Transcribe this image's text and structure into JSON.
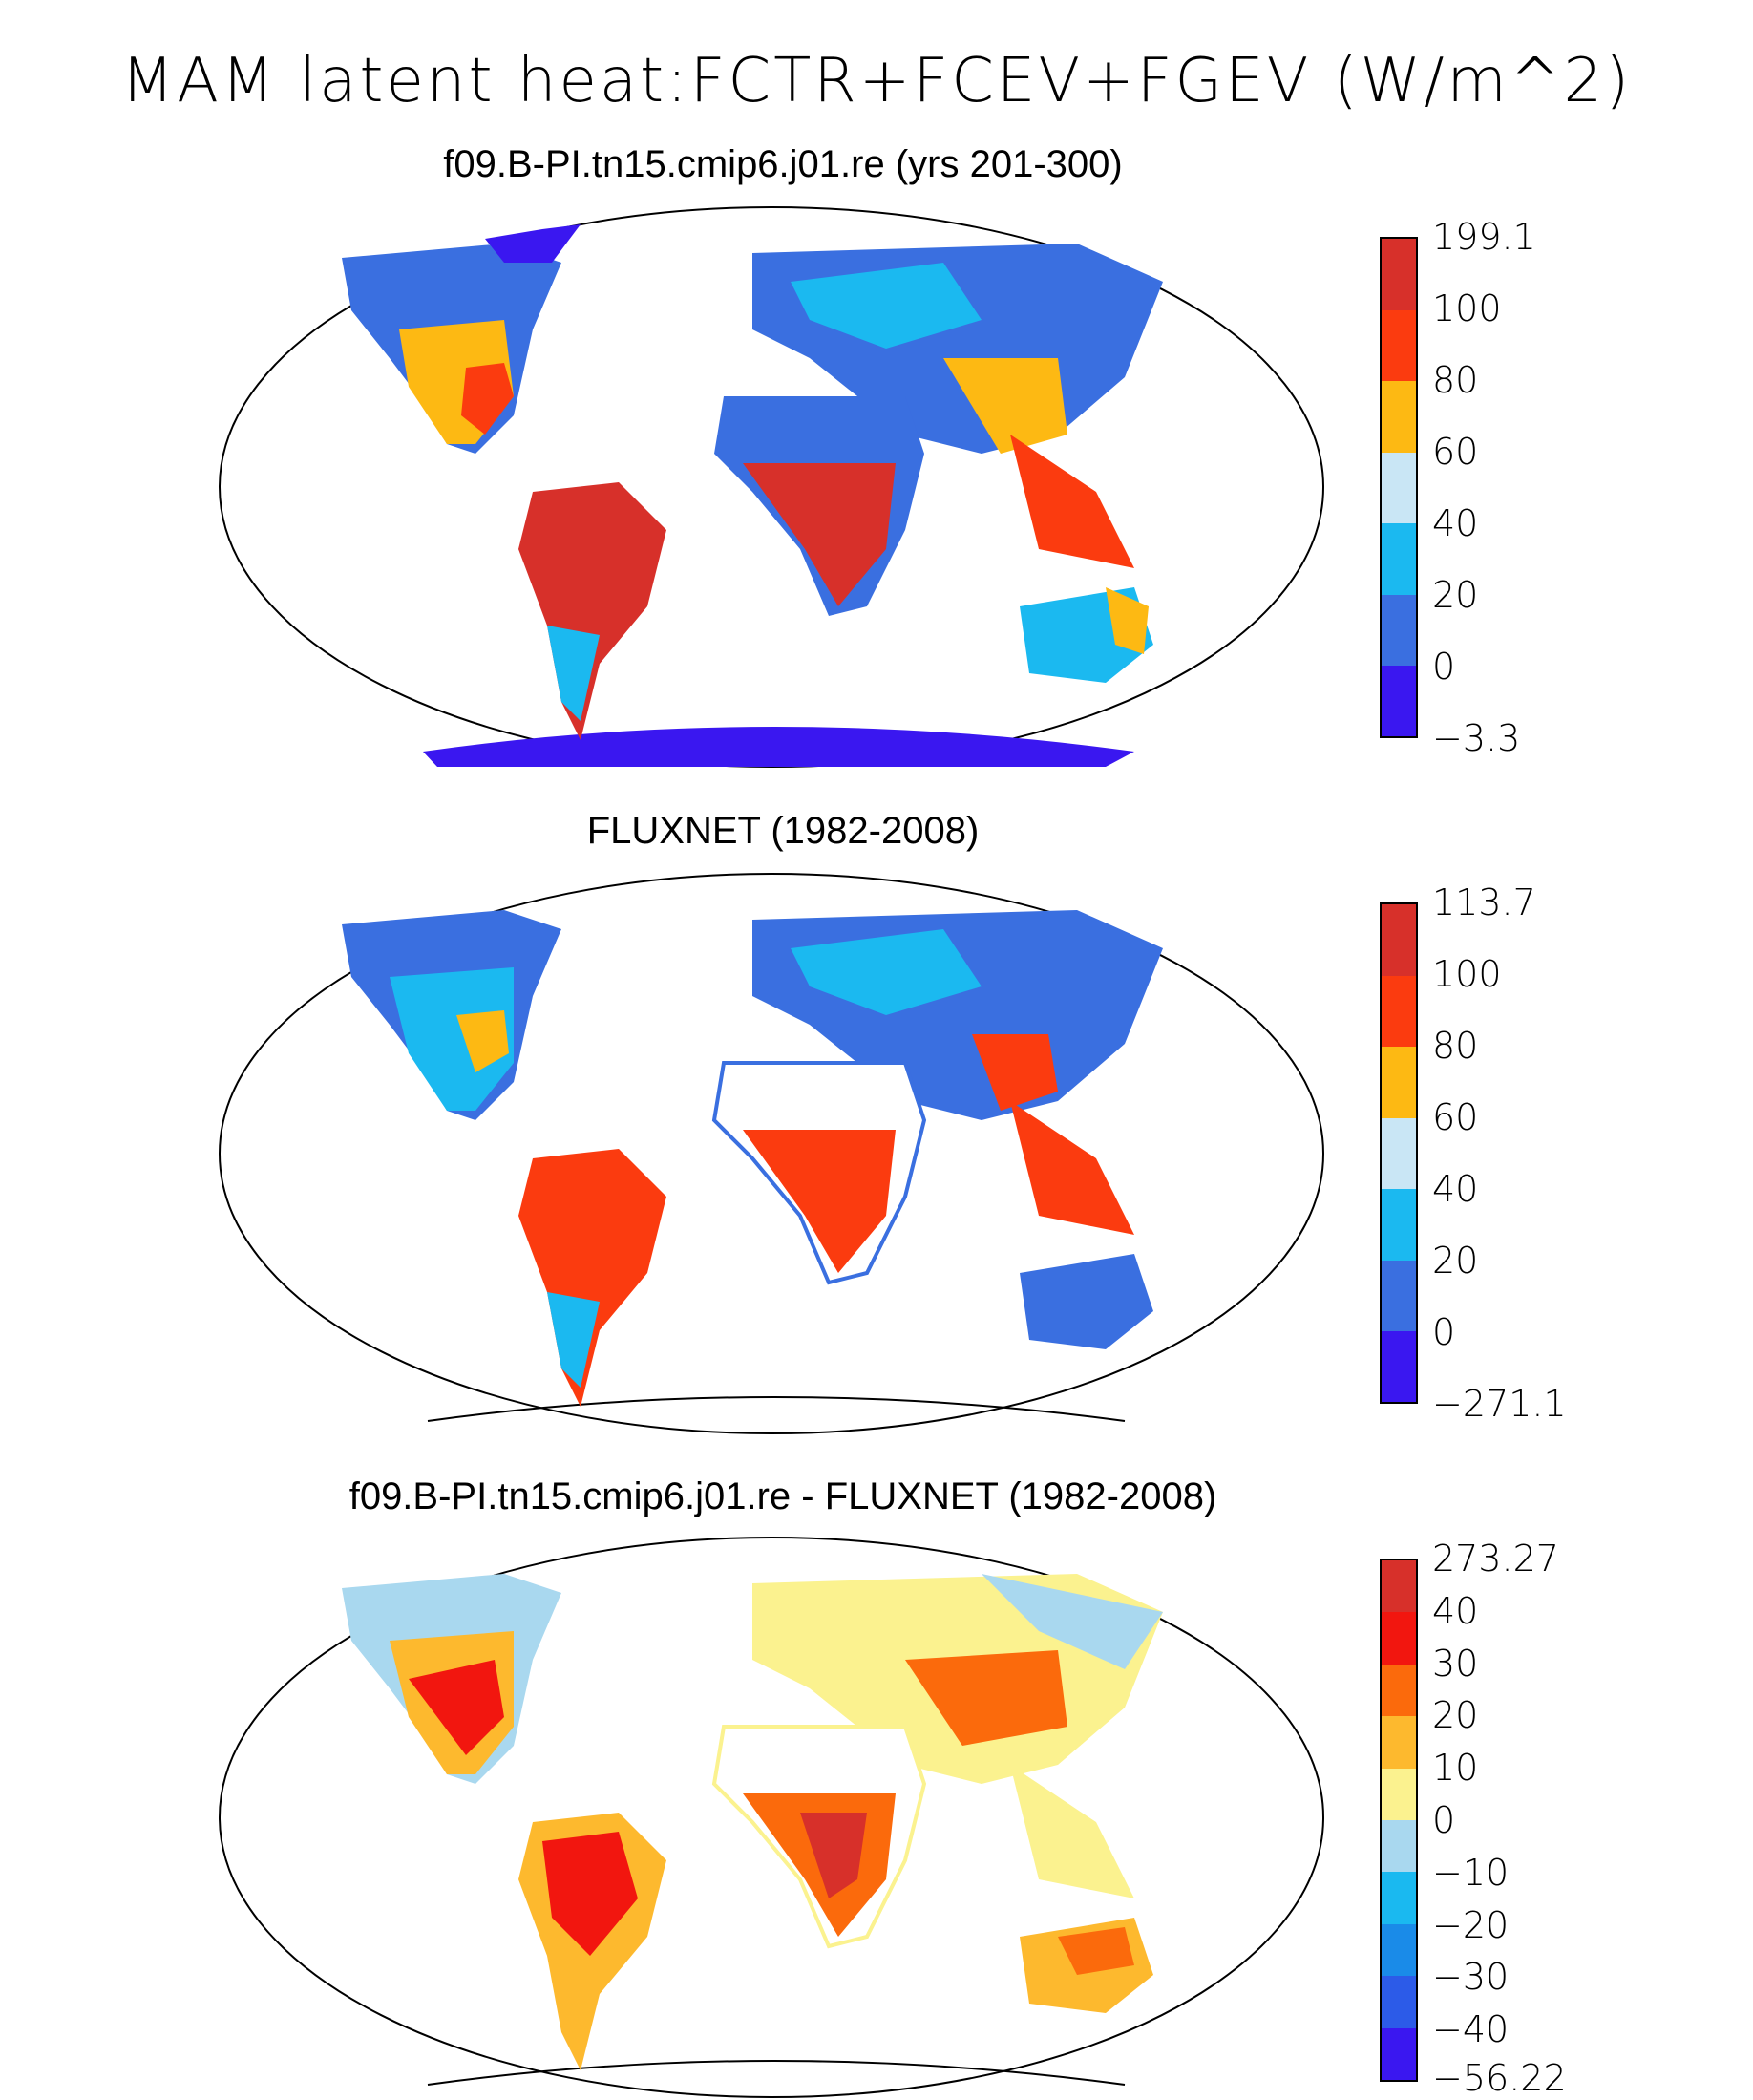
{
  "title": "MAM latent heat:FCTR+FCEV+FGEV (W/m^2)",
  "panels": [
    {
      "title": "f09.B-PI.tn15.cmip6.j01.re (yrs 201-300)",
      "colorbar": {
        "labels": [
          "199.1",
          "100",
          "80",
          "60",
          "40",
          "20",
          "0",
          "−3.3"
        ],
        "colors": [
          "#d7302a",
          "#fb3b0f",
          "#fdb913",
          "#c9e6f5",
          "#1bb9f0",
          "#3a6fe0",
          "#3a17f0"
        ]
      }
    },
    {
      "title": "FLUXNET (1982-2008)",
      "colorbar": {
        "labels": [
          "113.7",
          "100",
          "80",
          "60",
          "40",
          "20",
          "0",
          "−271.1"
        ],
        "colors": [
          "#d7302a",
          "#fb3b0f",
          "#fdb913",
          "#c9e6f5",
          "#1bb9f0",
          "#3a6fe0",
          "#3a17f0"
        ]
      }
    },
    {
      "title": "f09.B-PI.tn15.cmip6.j01.re - FLUXNET (1982-2008)",
      "colorbar": {
        "labels": [
          "273.27",
          "40",
          "30",
          "20",
          "10",
          "0",
          "−10",
          "−20",
          "−30",
          "−40",
          "−56.22"
        ],
        "colors": [
          "#d7302a",
          "#f2160f",
          "#fb6a0c",
          "#fdb92e",
          "#fbf28f",
          "#a9d8ef",
          "#1ab9f0",
          "#1a8be8",
          "#2c5be8",
          "#3a17f0"
        ]
      }
    }
  ]
}
